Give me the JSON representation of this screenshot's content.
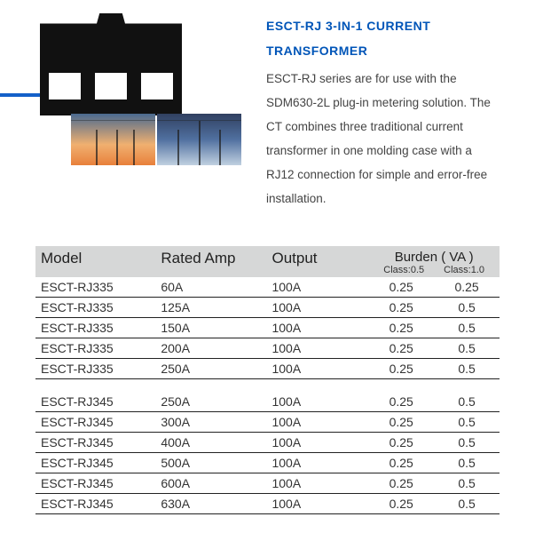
{
  "header": {
    "title": "ESCT-RJ  3-IN-1 CURRENT TRANSFORMER",
    "description": "ESCT-RJ series are for use with the SDM630-2L plug-in metering solution. The CT combines three traditional current transformer in one molding case with a RJ12 connection for simple and error-free installation."
  },
  "colors": {
    "title": "#0055b8",
    "accent_line": "#1460c9",
    "table_header_bg": "#d6d7d7",
    "row_border": "#222222"
  },
  "table": {
    "columns": {
      "model": "Model",
      "rated_amp": "Rated Amp",
      "output": "Output",
      "burden": "Burden ( VA )",
      "class05": "Class:0.5",
      "class10": "Class:1.0"
    },
    "groups": [
      {
        "rows": [
          {
            "model": "ESCT-RJ335",
            "rated_amp": "60A",
            "output": "100A",
            "c05": "0.25",
            "c10": "0.25"
          },
          {
            "model": "ESCT-RJ335",
            "rated_amp": "125A",
            "output": "100A",
            "c05": "0.25",
            "c10": "0.5"
          },
          {
            "model": "ESCT-RJ335",
            "rated_amp": "150A",
            "output": "100A",
            "c05": "0.25",
            "c10": "0.5"
          },
          {
            "model": "ESCT-RJ335",
            "rated_amp": "200A",
            "output": "100A",
            "c05": "0.25",
            "c10": "0.5"
          },
          {
            "model": "ESCT-RJ335",
            "rated_amp": "250A",
            "output": "100A",
            "c05": "0.25",
            "c10": "0.5"
          }
        ]
      },
      {
        "rows": [
          {
            "model": "ESCT-RJ345",
            "rated_amp": "250A",
            "output": "100A",
            "c05": "0.25",
            "c10": "0.5"
          },
          {
            "model": "ESCT-RJ345",
            "rated_amp": "300A",
            "output": "100A",
            "c05": "0.25",
            "c10": "0.5"
          },
          {
            "model": "ESCT-RJ345",
            "rated_amp": "400A",
            "output": "100A",
            "c05": "0.25",
            "c10": "0.5"
          },
          {
            "model": "ESCT-RJ345",
            "rated_amp": "500A",
            "output": "100A",
            "c05": "0.25",
            "c10": "0.5"
          },
          {
            "model": "ESCT-RJ345",
            "rated_amp": "600A",
            "output": "100A",
            "c05": "0.25",
            "c10": "0.5"
          },
          {
            "model": "ESCT-RJ345",
            "rated_amp": "630A",
            "output": "100A",
            "c05": "0.25",
            "c10": "0.5"
          }
        ]
      }
    ]
  }
}
